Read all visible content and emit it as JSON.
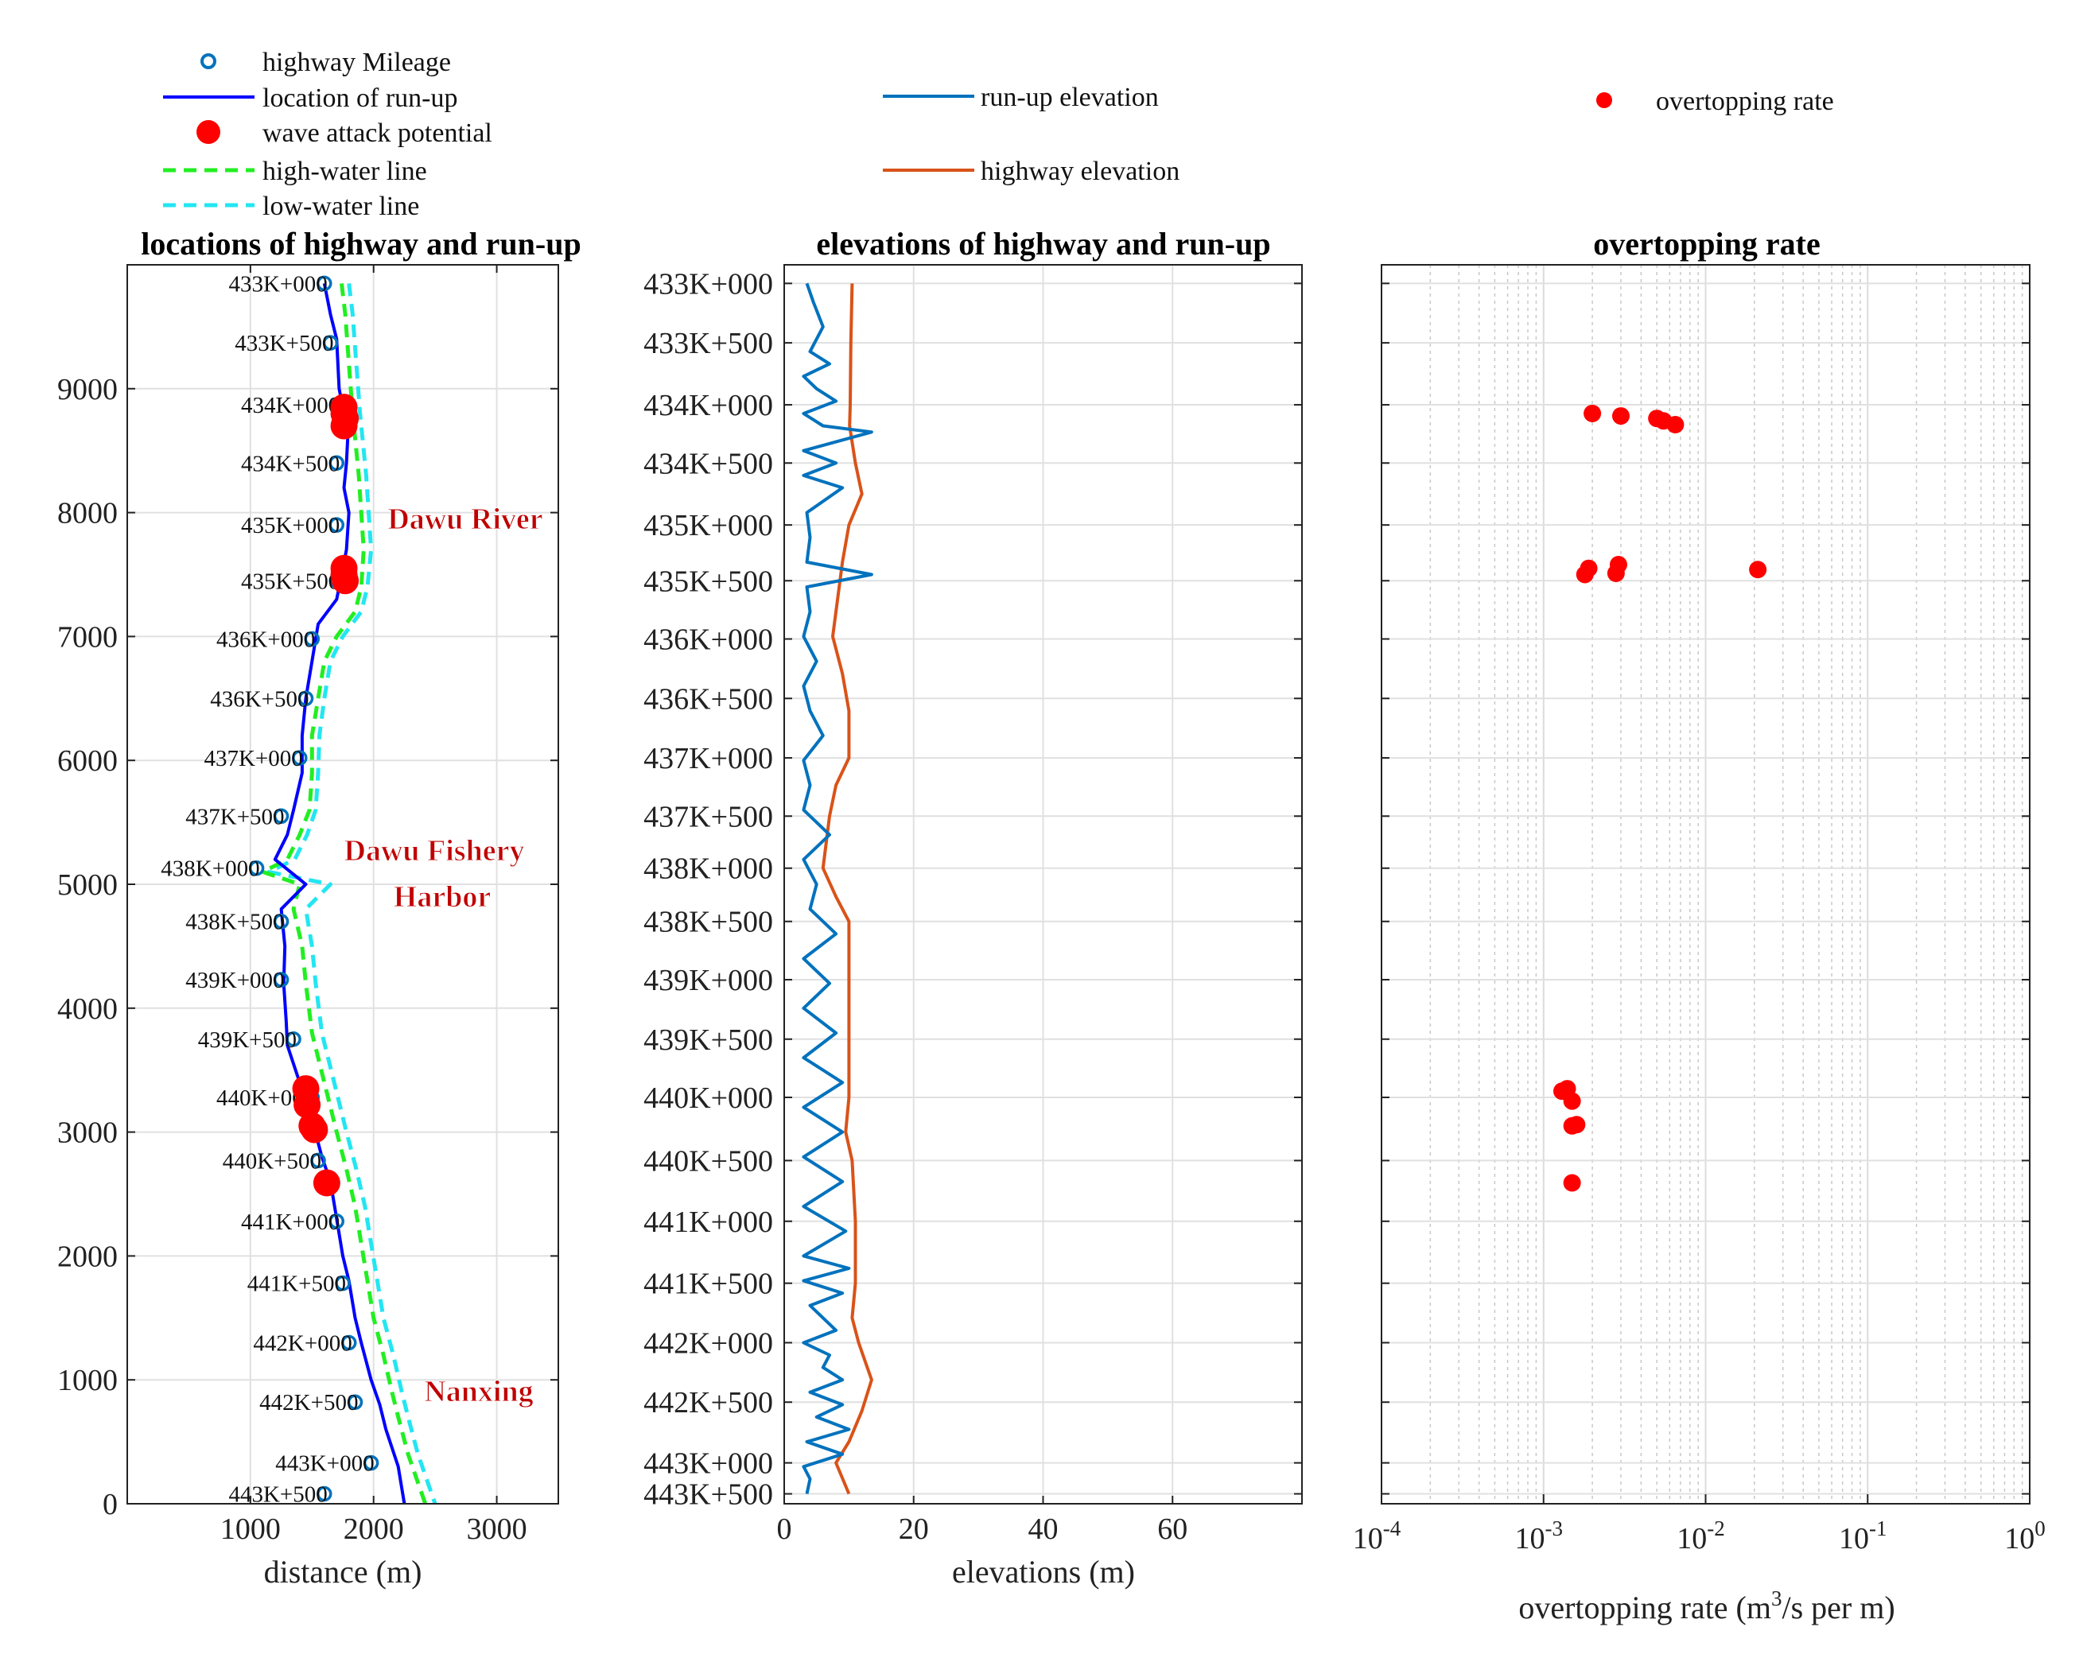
{
  "chart_data": [
    {
      "type": "line",
      "title": "locations of highway and run-up",
      "xlabel": "distance (m)",
      "ylabel": "",
      "xlim": [
        0,
        3500
      ],
      "ylim": [
        0,
        10000
      ],
      "xticks": [
        1000,
        2000,
        3000
      ],
      "yticks": [
        0,
        1000,
        2000,
        3000,
        4000,
        5000,
        6000,
        7000,
        8000,
        9000
      ],
      "grid": true,
      "legend": {
        "position": "top-left",
        "entries": [
          {
            "label": "highway Mileage",
            "style": "circle",
            "color": "#0072BD"
          },
          {
            "label": "location of run-up",
            "style": "line",
            "color": "#0000FF"
          },
          {
            "label": "wave attack potential",
            "style": "dot",
            "color": "#FF0000"
          },
          {
            "label": "high-water line",
            "style": "dashed",
            "color": "#22EE22"
          },
          {
            "label": "low-water line",
            "style": "dashed",
            "color": "#22E6F2"
          }
        ]
      },
      "mileage": [
        {
          "label": "433K+000",
          "x": 1600,
          "y": 9850
        },
        {
          "label": "433K+500",
          "x": 1650,
          "y": 9370
        },
        {
          "label": "434K+000",
          "x": 1700,
          "y": 8870
        },
        {
          "label": "434K+500",
          "x": 1700,
          "y": 8400
        },
        {
          "label": "435K+000",
          "x": 1700,
          "y": 7900
        },
        {
          "label": "435K+500",
          "x": 1700,
          "y": 7450
        },
        {
          "label": "436K+000",
          "x": 1500,
          "y": 6980
        },
        {
          "label": "436K+500",
          "x": 1450,
          "y": 6500
        },
        {
          "label": "437K+000",
          "x": 1400,
          "y": 6020
        },
        {
          "label": "437K+500",
          "x": 1250,
          "y": 5550
        },
        {
          "label": "438K+000",
          "x": 1050,
          "y": 5130
        },
        {
          "label": "438K+500",
          "x": 1250,
          "y": 4700
        },
        {
          "label": "439K+000",
          "x": 1250,
          "y": 4230
        },
        {
          "label": "439K+500",
          "x": 1350,
          "y": 3750
        },
        {
          "label": "440K+000",
          "x": 1500,
          "y": 3280
        },
        {
          "label": "440K+500",
          "x": 1550,
          "y": 2770
        },
        {
          "label": "441K+000",
          "x": 1700,
          "y": 2280
        },
        {
          "label": "441K+500",
          "x": 1750,
          "y": 1780
        },
        {
          "label": "442K+000",
          "x": 1800,
          "y": 1300
        },
        {
          "label": "442K+500",
          "x": 1850,
          "y": 820
        },
        {
          "label": "443K+000",
          "x": 1980,
          "y": 330
        },
        {
          "label": "443K+500",
          "x": 1600,
          "y": 80
        }
      ],
      "runup_line": {
        "x": [
          1600,
          1650,
          1700,
          1720,
          1760,
          1790,
          1780,
          1760,
          1800,
          1780,
          1700,
          1550,
          1500,
          1450,
          1420,
          1420,
          1350,
          1300,
          1200,
          1450,
          1250,
          1280,
          1270,
          1290,
          1300,
          1400,
          1500,
          1580,
          1650,
          1700,
          1750,
          1800,
          1850,
          1900,
          1980,
          2050,
          2100,
          2200,
          2250
        ],
        "y": [
          9850,
          9600,
          9400,
          9000,
          8800,
          8600,
          8400,
          8200,
          8000,
          7700,
          7300,
          7100,
          6800,
          6500,
          6200,
          5900,
          5600,
          5400,
          5200,
          5000,
          4800,
          4500,
          4200,
          3900,
          3700,
          3400,
          3100,
          2800,
          2600,
          2300,
          2000,
          1800,
          1500,
          1300,
          1000,
          800,
          600,
          300,
          0
        ]
      },
      "highwater_line": {
        "x": [
          1740,
          1770,
          1800,
          1830,
          1850,
          1880,
          1900,
          1920,
          1900,
          1850,
          1700,
          1600,
          1550,
          1500,
          1500,
          1480,
          1400,
          1300,
          1100,
          1400,
          1350,
          1420,
          1450,
          1500,
          1600,
          1700,
          1780,
          1850,
          1900,
          1950,
          2000,
          2080,
          2150,
          2200,
          2280,
          2350,
          2420
        ],
        "y": [
          9850,
          9600,
          9200,
          8800,
          8600,
          8300,
          8000,
          7700,
          7400,
          7200,
          7000,
          6800,
          6500,
          6200,
          5900,
          5600,
          5400,
          5200,
          5100,
          5000,
          4800,
          4500,
          4200,
          3800,
          3400,
          3000,
          2700,
          2400,
          2100,
          1800,
          1500,
          1200,
          900,
          700,
          400,
          200,
          0
        ]
      },
      "lowwater_line": {
        "x": [
          1800,
          1830,
          1860,
          1890,
          1910,
          1940,
          1960,
          1980,
          1950,
          1900,
          1750,
          1650,
          1600,
          1560,
          1550,
          1530,
          1460,
          1360,
          1150,
          1650,
          1450,
          1500,
          1530,
          1580,
          1680,
          1780,
          1860,
          1930,
          1980,
          2030,
          2080,
          2160,
          2230,
          2280,
          2360,
          2430,
          2500
        ],
        "y": [
          9850,
          9600,
          9200,
          8800,
          8600,
          8300,
          8000,
          7700,
          7400,
          7200,
          7000,
          6800,
          6500,
          6200,
          5900,
          5600,
          5400,
          5200,
          5100,
          5000,
          4800,
          4500,
          4200,
          3800,
          3400,
          3000,
          2700,
          2400,
          2100,
          1800,
          1500,
          1200,
          900,
          700,
          400,
          200,
          0
        ]
      },
      "wave_attack_points": [
        {
          "x": 1760,
          "y": 8850
        },
        {
          "x": 1760,
          "y": 8800
        },
        {
          "x": 1770,
          "y": 8760
        },
        {
          "x": 1760,
          "y": 8700
        },
        {
          "x": 1760,
          "y": 7550
        },
        {
          "x": 1760,
          "y": 7500
        },
        {
          "x": 1770,
          "y": 7450
        },
        {
          "x": 1450,
          "y": 3350
        },
        {
          "x": 1460,
          "y": 3220
        },
        {
          "x": 1500,
          "y": 3050
        },
        {
          "x": 1520,
          "y": 3020
        },
        {
          "x": 1620,
          "y": 2590
        }
      ],
      "annotations": [
        "Dawu River",
        "Dawu Fishery",
        "Harbor",
        "Nanxing"
      ]
    },
    {
      "type": "line",
      "title": "elevations of highway and run-up",
      "xlabel": "elevations (m)",
      "xlim": [
        0,
        80
      ],
      "xticks": [
        0,
        20,
        40,
        60
      ],
      "ylim": [
        0,
        10000
      ],
      "ytick_positions": [
        9850,
        9370,
        8870,
        8400,
        7900,
        7450,
        6980,
        6500,
        6020,
        5550,
        5130,
        4700,
        4230,
        3750,
        3280,
        2770,
        2280,
        1780,
        1300,
        820,
        330,
        80
      ],
      "ytick_labels": [
        "433K+000",
        "433K+500",
        "434K+000",
        "434K+500",
        "435K+000",
        "435K+500",
        "436K+000",
        "436K+500",
        "437K+000",
        "437K+500",
        "438K+000",
        "438K+500",
        "439K+000",
        "439K+500",
        "440K+000",
        "440K+500",
        "441K+000",
        "441K+500",
        "442K+000",
        "442K+500",
        "443K+000",
        "443K+500"
      ],
      "grid": true,
      "legend": {
        "position": "top",
        "entries": [
          {
            "label": "run-up elevation",
            "style": "line",
            "color": "#0072BD"
          },
          {
            "label": "highway elevation",
            "style": "line",
            "color": "#D95319"
          }
        ]
      },
      "series": [
        {
          "name": "highway elevation",
          "color": "#D95319",
          "x": [
            10.5,
            10.3,
            10.2,
            10.1,
            11.0,
            12.0,
            10.0,
            9.0,
            7.5,
            9.0,
            10.0,
            10.0,
            8.0,
            7.0,
            6.0,
            8.0,
            10.0,
            10.0,
            10.0,
            10.0,
            9.5,
            10.5,
            11.0,
            11.0,
            10.5,
            11.5,
            13.5,
            12.0,
            10.0,
            8.0,
            10.0
          ],
          "y": [
            9850,
            9370,
            8870,
            8700,
            8400,
            8150,
            7900,
            7600,
            7000,
            6700,
            6400,
            6020,
            5800,
            5550,
            5130,
            4900,
            4700,
            4230,
            3750,
            3280,
            3000,
            2770,
            2280,
            1780,
            1500,
            1300,
            1000,
            750,
            500,
            330,
            80
          ]
        },
        {
          "name": "run-up elevation",
          "color": "#0072BD",
          "x": [
            3.5,
            4.5,
            6.0,
            4.0,
            7.0,
            3.0,
            5.0,
            8.0,
            3.0,
            6.0,
            13.5,
            3.0,
            8.0,
            3.0,
            9.0,
            3.5,
            4.0,
            3.5,
            13.5,
            3.5,
            4.0,
            3.0,
            5.0,
            3.0,
            4.0,
            6.0,
            3.0,
            4.0,
            3.0,
            7.0,
            3.0,
            5.0,
            4.0,
            8.0,
            3.0,
            7.0,
            3.0,
            8.0,
            3.0,
            9.0,
            3.0,
            9.0,
            3.0,
            9.0,
            3.0,
            9.5,
            3.0,
            10.0,
            3.0,
            9.0,
            4.0,
            8.0,
            3.0,
            7.0,
            6.0,
            9.0,
            4.0,
            9.0,
            5.0,
            10.0,
            3.5,
            9.0,
            3.0,
            4.0,
            3.5
          ],
          "y": [
            9850,
            9700,
            9500,
            9300,
            9200,
            9100,
            9000,
            8900,
            8800,
            8700,
            8650,
            8500,
            8400,
            8300,
            8200,
            8000,
            7800,
            7600,
            7500,
            7400,
            7200,
            7000,
            6800,
            6600,
            6400,
            6200,
            6000,
            5800,
            5600,
            5400,
            5200,
            5000,
            4800,
            4600,
            4400,
            4200,
            4000,
            3800,
            3600,
            3400,
            3200,
            3000,
            2800,
            2600,
            2400,
            2200,
            2000,
            1900,
            1800,
            1700,
            1600,
            1400,
            1300,
            1200,
            1100,
            1000,
            900,
            800,
            700,
            600,
            500,
            400,
            300,
            200,
            80
          ]
        }
      ]
    },
    {
      "type": "scatter",
      "title": "overtopping rate",
      "xlabel": "overtopping rate (m",
      "xlabel_sup": "3",
      "xlabel_tail": "/s per m)",
      "xscale": "log",
      "xlim": [
        0.0001,
        1
      ],
      "xtick_base": "10",
      "xtick_exponents": [
        "-4",
        "-3",
        "-2",
        "-1",
        "0"
      ],
      "ylim": [
        0,
        10000
      ],
      "grid": true,
      "legend": {
        "position": "top-right",
        "entries": [
          {
            "label": "overtopping rate",
            "style": "dot",
            "color": "#FF0000"
          }
        ]
      },
      "points": [
        {
          "x": 0.002,
          "y": 8800
        },
        {
          "x": 0.003,
          "y": 8780
        },
        {
          "x": 0.005,
          "y": 8760
        },
        {
          "x": 0.0055,
          "y": 8740
        },
        {
          "x": 0.0065,
          "y": 8710
        },
        {
          "x": 0.0019,
          "y": 7550
        },
        {
          "x": 0.0018,
          "y": 7500
        },
        {
          "x": 0.0029,
          "y": 7580
        },
        {
          "x": 0.0028,
          "y": 7510
        },
        {
          "x": 0.021,
          "y": 7540
        },
        {
          "x": 0.0013,
          "y": 3330
        },
        {
          "x": 0.0014,
          "y": 3350
        },
        {
          "x": 0.0015,
          "y": 3250
        },
        {
          "x": 0.0015,
          "y": 3050
        },
        {
          "x": 0.0016,
          "y": 3060
        },
        {
          "x": 0.0015,
          "y": 2590
        }
      ]
    }
  ]
}
